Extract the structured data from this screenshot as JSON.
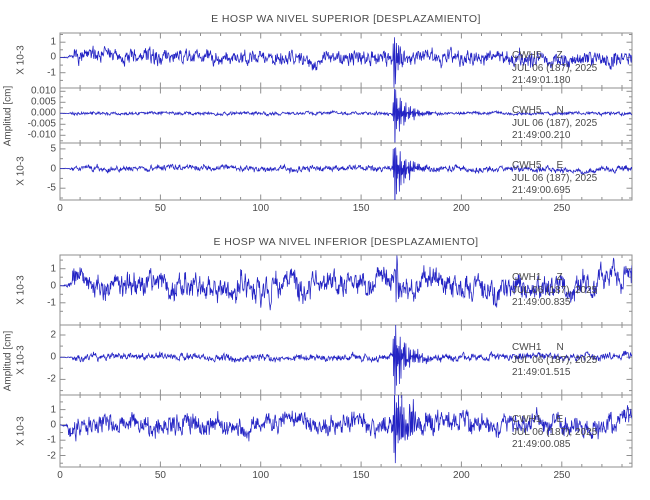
{
  "colors": {
    "trace": "#2323c4",
    "frame": "#8f8f8f",
    "text": "#4a4a4a",
    "background": "#ffffff"
  },
  "chart_data": [
    {
      "type": "line",
      "kind": "seismogram",
      "title": "E HOSP WA NIVEL SUPERIOR [DESPLAZAMIENTO]",
      "ylabel": "Amplitud [cm]",
      "xlim": [
        0,
        285
      ],
      "x_minor_step": 10,
      "xticks": [
        {
          "v": 0,
          "label": "0"
        },
        {
          "v": 50,
          "label": "50"
        },
        {
          "v": 100,
          "label": "100"
        },
        {
          "v": 150,
          "label": "150"
        },
        {
          "v": 200,
          "label": "200"
        },
        {
          "v": 250,
          "label": "250"
        }
      ],
      "grid": false,
      "legend_position": "none",
      "series": [
        {
          "station": "CWH5",
          "component": "Z",
          "date": "JUL 06 (187), 2025",
          "time": "21:49:01.180",
          "scale_label": "X 10-3",
          "ylim": [
            -2.0,
            1.6
          ],
          "yticks": [
            {
              "v": 1,
              "label": "1"
            },
            {
              "v": 0,
              "label": "0"
            },
            {
              "v": -1,
              "label": "-1"
            }
          ],
          "gen": {
            "seed": 7,
            "noise": 0.32,
            "wander": 0.3,
            "quiet": 7,
            "event_t": 166,
            "event_amp": 2.4,
            "event_decay": 3.0,
            "event_freq": 1.5
          }
        },
        {
          "station": "CWH5",
          "component": "N",
          "date": "JUL 06 (187), 2025",
          "time": "21:49:00.210",
          "scale_label": "",
          "ylim": [
            -0.0135,
            0.0115
          ],
          "yticks": [
            {
              "v": 0.01,
              "label": "0.010"
            },
            {
              "v": 0.005,
              "label": "0.005"
            },
            {
              "v": 0.0,
              "label": "0.000"
            },
            {
              "v": -0.005,
              "label": "-0.005"
            },
            {
              "v": -0.01,
              "label": "-0.010"
            }
          ],
          "gen": {
            "seed": 13,
            "noise": 0.0005,
            "wander": 0.0004,
            "quiet": 5,
            "event_t": 166,
            "event_amp": 0.0155,
            "event_decay": 6.0,
            "event_freq": 1.8
          }
        },
        {
          "station": "CWH5",
          "component": "E",
          "date": "JUL 06 (187), 2025",
          "time": "21:49:00.695",
          "scale_label": "X 10-3",
          "ylim": [
            -8.0,
            6.5
          ],
          "yticks": [
            {
              "v": 5,
              "label": "5"
            },
            {
              "v": 0,
              "label": "0"
            },
            {
              "v": -5,
              "label": "-5"
            }
          ],
          "gen": {
            "seed": 21,
            "noise": 0.5,
            "wander": 0.5,
            "quiet": 5,
            "event_t": 166,
            "event_amp": 10.5,
            "event_decay": 5.5,
            "event_freq": 1.8
          }
        }
      ]
    },
    {
      "type": "line",
      "kind": "seismogram",
      "title": "E HOSP WA NIVEL INFERIOR [DESPLAZAMIENTO]",
      "ylabel": "Amplitud [cm]",
      "xlim": [
        0,
        285
      ],
      "x_minor_step": 10,
      "xticks": [
        {
          "v": 0,
          "label": "0"
        },
        {
          "v": 50,
          "label": "50"
        },
        {
          "v": 100,
          "label": "100"
        },
        {
          "v": 150,
          "label": "150"
        },
        {
          "v": 200,
          "label": "200"
        },
        {
          "v": 250,
          "label": "250"
        }
      ],
      "grid": false,
      "legend_position": "none",
      "series": [
        {
          "station": "CWH1",
          "component": "Z",
          "date": "JUL 06 (187), 2025",
          "time": "21:49:00.835",
          "scale_label": "X 10-3",
          "ylim": [
            -2.3,
            1.8
          ],
          "yticks": [
            {
              "v": 1,
              "label": "1"
            },
            {
              "v": 0,
              "label": "0"
            },
            {
              "v": -1,
              "label": "-1"
            }
          ],
          "gen": {
            "seed": 33,
            "noise": 0.45,
            "wander": 0.6,
            "quiet": 6,
            "event_t": 167,
            "event_amp": 1.5,
            "event_decay": 1.6,
            "event_freq": 1.2
          }
        },
        {
          "station": "CWH1",
          "component": "N",
          "date": "JUL 06 (187), 2025",
          "time": "21:49:01.515",
          "scale_label": "X 10-3",
          "ylim": [
            -3.4,
            2.9
          ],
          "yticks": [
            {
              "v": 2,
              "label": "2"
            },
            {
              "v": 0,
              "label": "0"
            },
            {
              "v": -2,
              "label": "-2"
            }
          ],
          "gen": {
            "seed": 41,
            "noise": 0.22,
            "wander": 0.18,
            "quiet": 6,
            "event_t": 166,
            "event_amp": 4.3,
            "event_decay": 6.0,
            "event_freq": 1.8
          }
        },
        {
          "station": "CWH1",
          "component": "E",
          "date": "JUL 06 (187), 2025",
          "time": "21:49:00.085",
          "scale_label": "X 10-3",
          "ylim": [
            -2.75,
            1.95
          ],
          "yticks": [
            {
              "v": 1,
              "label": "1"
            },
            {
              "v": 0,
              "label": "0"
            },
            {
              "v": -1,
              "label": "-1"
            },
            {
              "v": -2,
              "label": "-2"
            }
          ],
          "gen": {
            "seed": 55,
            "noise": 0.42,
            "wander": 0.55,
            "quiet": 4,
            "event_t": 166,
            "event_amp": 3.0,
            "event_decay": 8.0,
            "event_freq": 1.5
          }
        }
      ]
    }
  ]
}
